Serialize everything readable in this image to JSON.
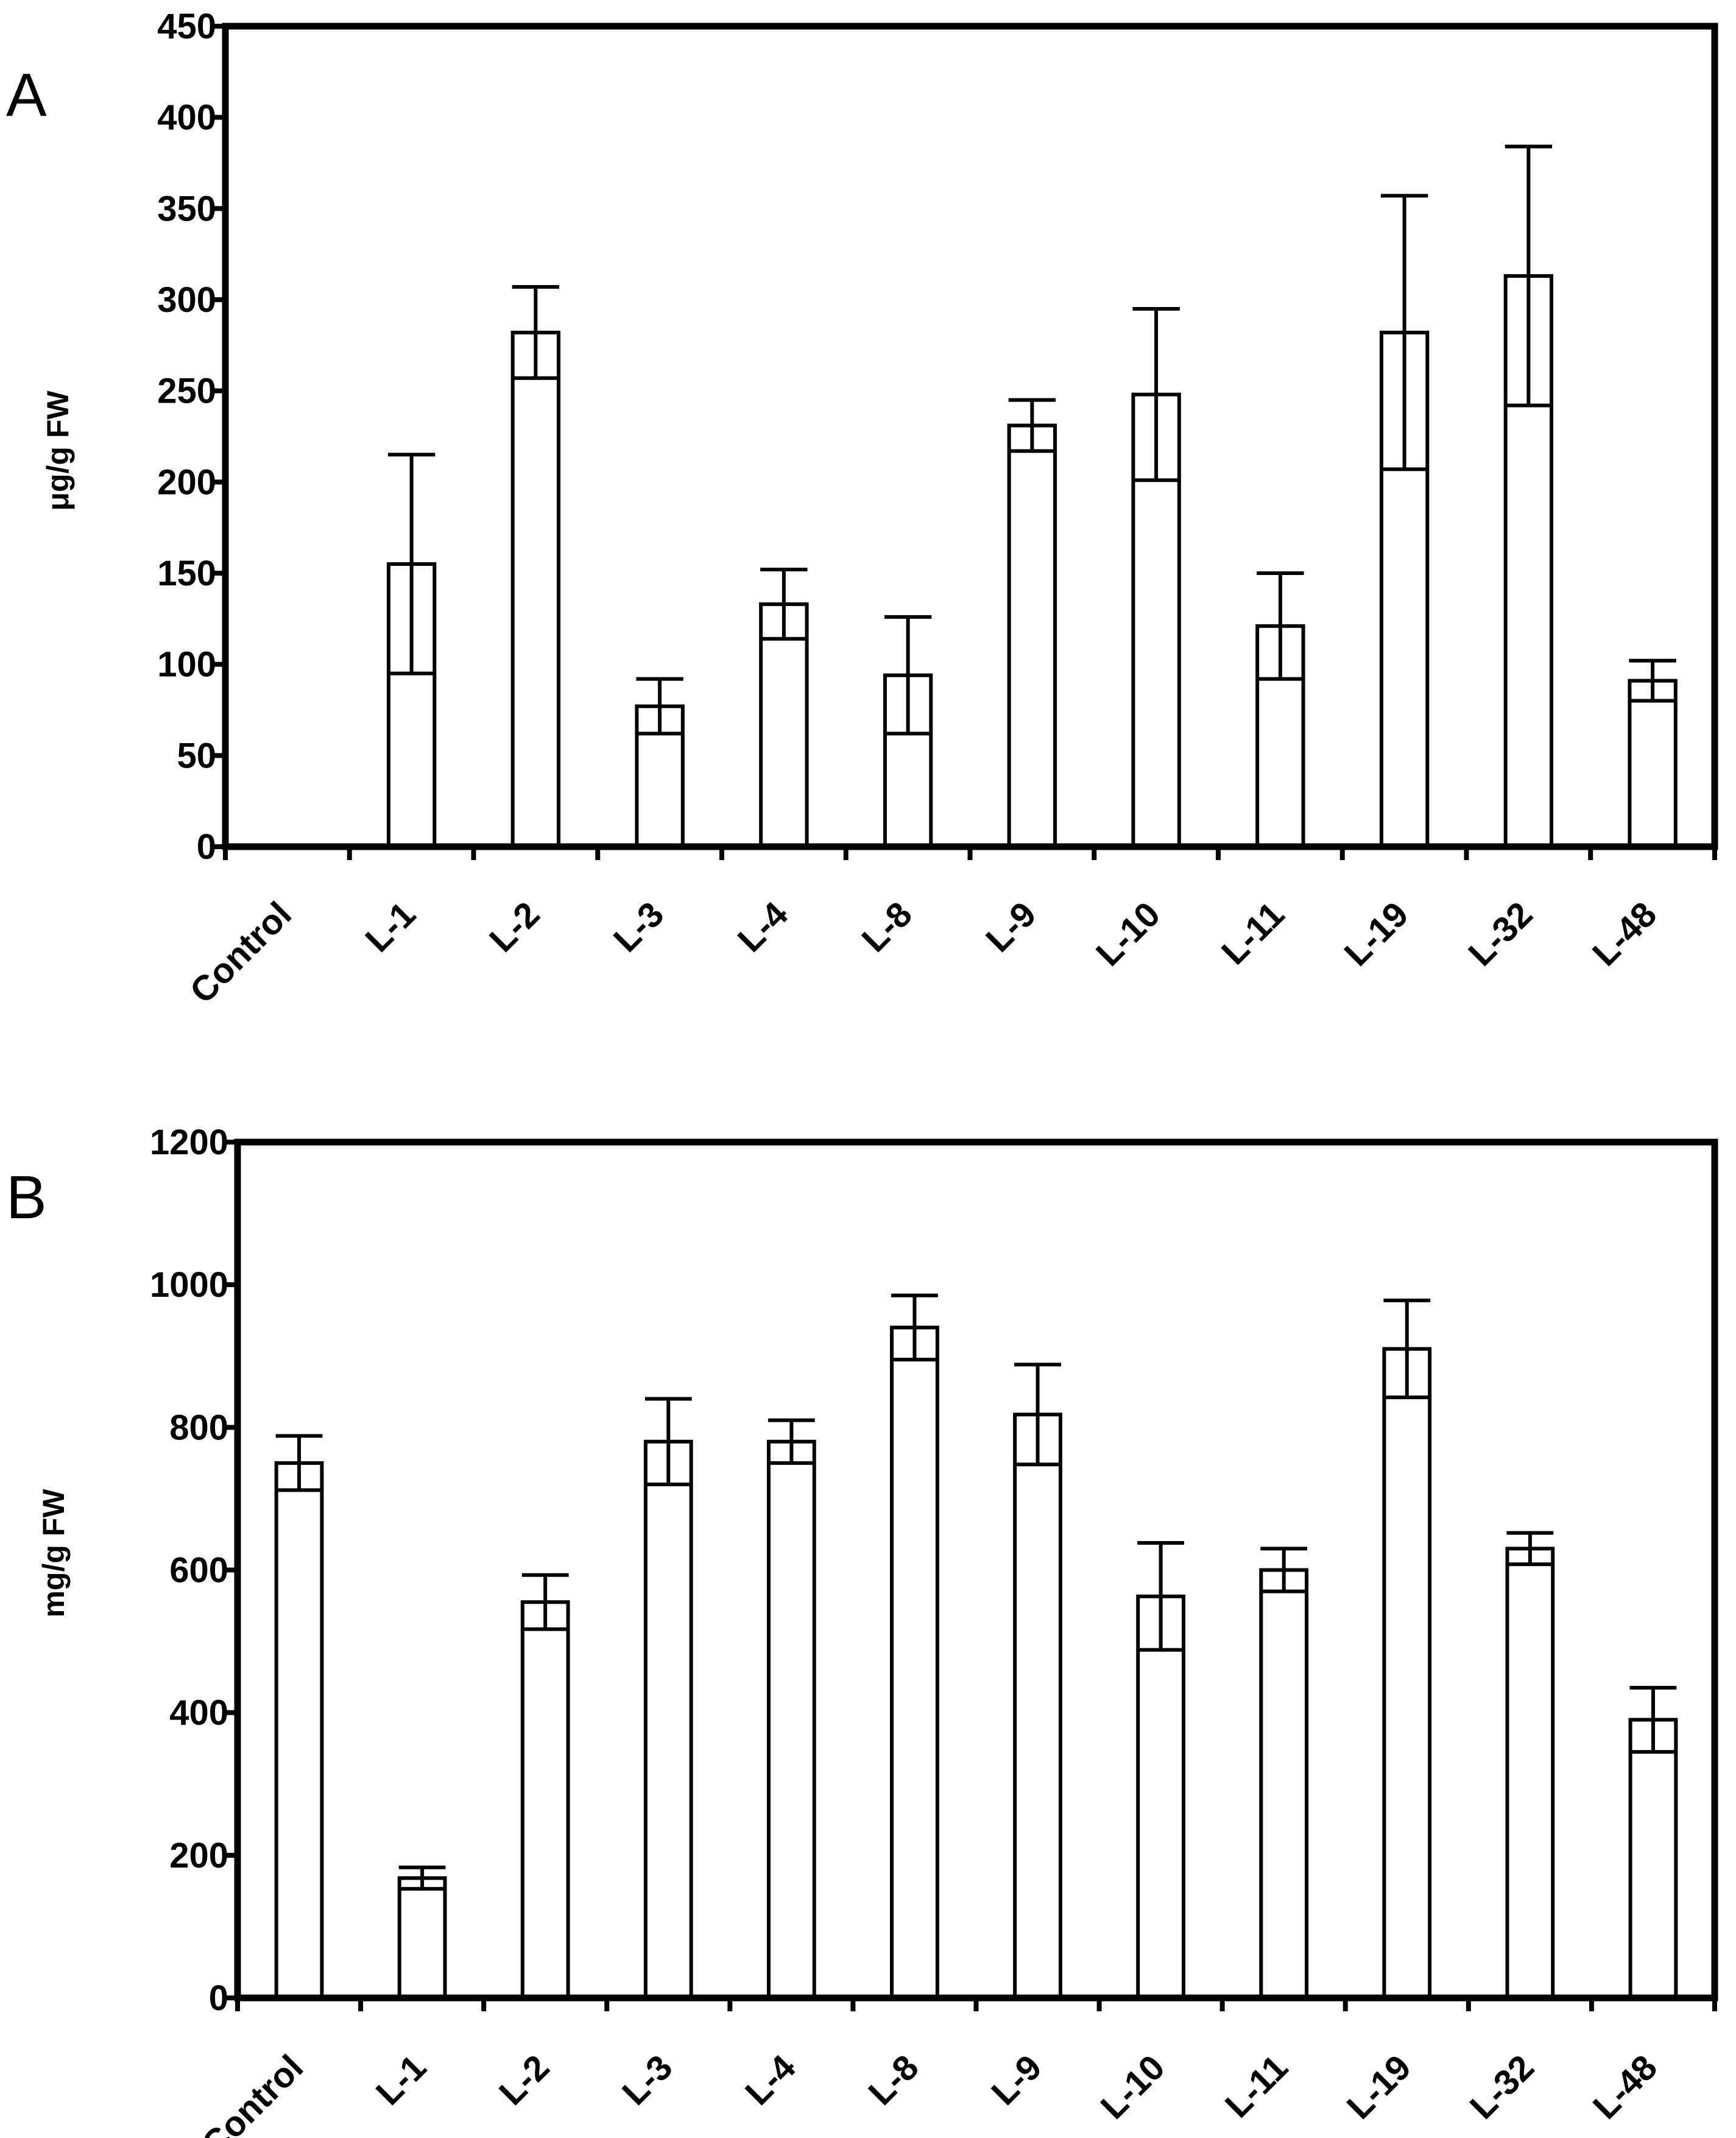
{
  "chart_data": [
    {
      "type": "bar",
      "panel": "A",
      "title": "",
      "xlabel": "",
      "ylabel": "μg/g FW",
      "ylim": [
        0,
        450
      ],
      "yticks": [
        0,
        50,
        100,
        150,
        200,
        250,
        300,
        350,
        400,
        450
      ],
      "categories": [
        "Control",
        "L-1",
        "L-2",
        "L-3",
        "L-4",
        "L-8",
        "L-9",
        "L-10",
        "L-11",
        "L-19",
        "L-32",
        "L-48"
      ],
      "values": [
        0,
        155,
        282,
        77,
        133,
        94,
        231,
        248,
        121,
        282,
        313,
        91
      ],
      "errors": [
        0,
        60,
        25,
        15,
        19,
        32,
        14,
        47,
        29,
        75,
        71,
        11
      ],
      "grid": false,
      "bar_color": "#ffffff",
      "edge_color": "#000000"
    },
    {
      "type": "bar",
      "panel": "B",
      "title": "",
      "xlabel": "",
      "ylabel": "mg/g FW",
      "ylim": [
        0,
        1200
      ],
      "yticks": [
        0,
        200,
        400,
        600,
        800,
        1000,
        1200
      ],
      "categories": [
        "Control",
        "L-1",
        "L-2",
        "L-3",
        "L-4",
        "L-8",
        "L-9",
        "L-10",
        "L-11",
        "L-19",
        "L-32",
        "L-48"
      ],
      "values": [
        750,
        168,
        555,
        780,
        780,
        940,
        818,
        563,
        600,
        910,
        630,
        390
      ],
      "errors": [
        38,
        15,
        38,
        60,
        30,
        45,
        70,
        75,
        30,
        68,
        22,
        45
      ],
      "grid": false,
      "bar_color": "#ffffff",
      "edge_color": "#000000"
    }
  ]
}
